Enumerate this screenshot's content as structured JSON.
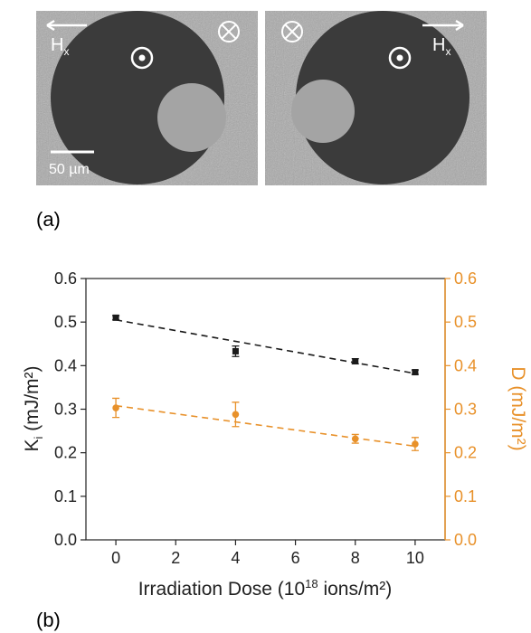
{
  "panel_a": {
    "label": "(a)",
    "scale_bar": "50 µm",
    "field_symbol": "H",
    "field_subscript": "x"
  },
  "panel_b": {
    "label": "(b)"
  },
  "chart_data": {
    "type": "scatter",
    "xlabel_parts": [
      "Irradiation Dose (10",
      "18",
      " ions/m²)"
    ],
    "ylabel_parts": [
      "K",
      "i",
      " (mJ/m²)"
    ],
    "y2label": "D (mJ/m²)",
    "xlim": [
      -1,
      11
    ],
    "xticks": [
      0,
      2,
      4,
      6,
      8,
      10
    ],
    "ylim": [
      0,
      0.6
    ],
    "yticks": [
      {
        "value": 0,
        "label": "0.0"
      },
      0.1,
      0.2,
      0.3,
      0.4,
      0.5,
      0.6
    ],
    "y2lim": [
      0,
      0.6
    ],
    "y2ticks": [
      {
        "value": 0,
        "label": "0.0"
      },
      0.1,
      0.2,
      0.3,
      0.4,
      0.5,
      0.6
    ],
    "series": [
      {
        "color": "#1a1a1a",
        "marker": "square",
        "x": [
          0,
          4,
          8,
          10
        ],
        "values": [
          0.51,
          0.433,
          0.41,
          0.385
        ],
        "errors": [
          0.005,
          0.012,
          0.006,
          0.005
        ],
        "fit_x": [
          0,
          10
        ],
        "fit_values": [
          0.505,
          0.382
        ]
      },
      {
        "color": "#e8912a",
        "marker": "circle",
        "axis": "y2",
        "x": [
          0,
          4,
          8,
          10
        ],
        "values": [
          0.303,
          0.288,
          0.232,
          0.22
        ],
        "errors": [
          0.022,
          0.028,
          0.01,
          0.015
        ],
        "fit_x": [
          0,
          10
        ],
        "fit_values": [
          0.308,
          0.215
        ]
      }
    ]
  }
}
